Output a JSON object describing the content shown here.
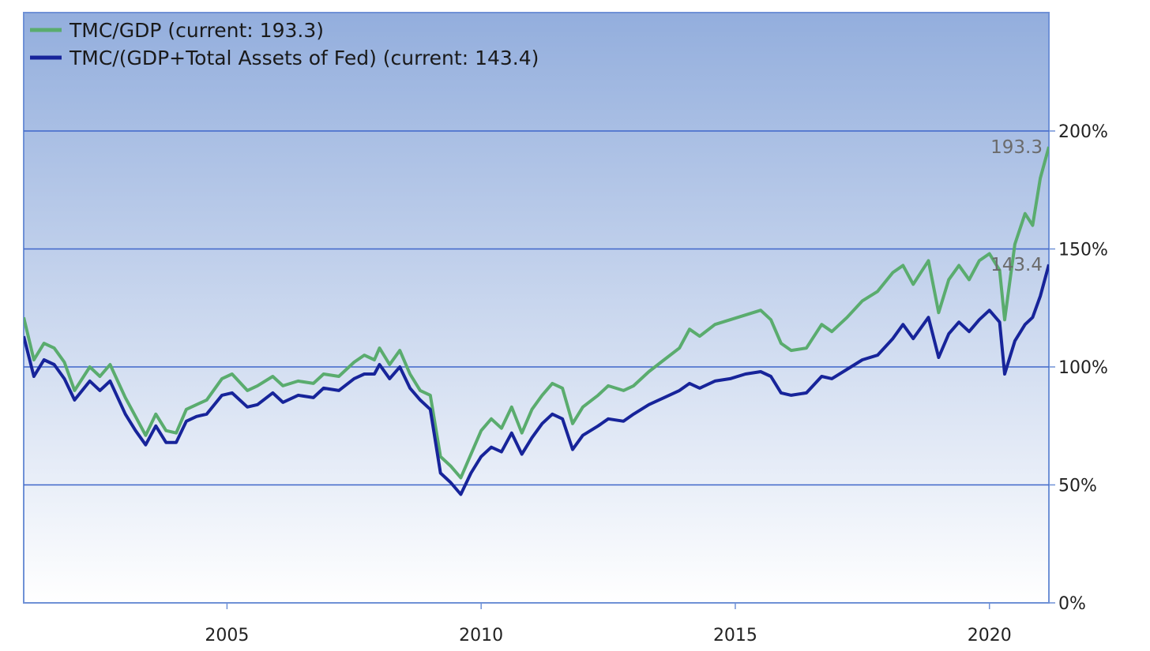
{
  "chart_data": {
    "type": "line",
    "title": "",
    "xlabel": "",
    "ylabel": "",
    "x_range": [
      2001.0,
      2021.17
    ],
    "ylim": [
      0,
      200
    ],
    "y_ticks": [
      0,
      50,
      100,
      150,
      200
    ],
    "y_tick_labels": [
      "0%",
      "50%",
      "100%",
      "150%",
      "200%"
    ],
    "x_ticks": [
      2005,
      2010,
      2015,
      2020
    ],
    "x_tick_labels": [
      "2005",
      "2010",
      "2015",
      "2020"
    ],
    "grid": "horizontal",
    "legend_position": "top-left",
    "colors": {
      "series_0": "#5aac6e",
      "series_1": "#17249a",
      "plot_bg_top": "#93aedd",
      "plot_bg_bottom": "#ffffff",
      "gridline": "#3f66c9"
    },
    "series": [
      {
        "name": "TMC/GDP (current: 193.3)",
        "end_label": "193.3",
        "points": [
          [
            2001.0,
            121
          ],
          [
            2001.2,
            103
          ],
          [
            2001.4,
            110
          ],
          [
            2001.6,
            108
          ],
          [
            2001.8,
            102
          ],
          [
            2002.0,
            90
          ],
          [
            2002.3,
            100
          ],
          [
            2002.5,
            96
          ],
          [
            2002.7,
            101
          ],
          [
            2003.0,
            87
          ],
          [
            2003.2,
            79
          ],
          [
            2003.4,
            71
          ],
          [
            2003.6,
            80
          ],
          [
            2003.8,
            73
          ],
          [
            2004.0,
            72
          ],
          [
            2004.2,
            82
          ],
          [
            2004.4,
            84
          ],
          [
            2004.6,
            86
          ],
          [
            2004.9,
            95
          ],
          [
            2005.1,
            97
          ],
          [
            2005.4,
            90
          ],
          [
            2005.6,
            92
          ],
          [
            2005.9,
            96
          ],
          [
            2006.1,
            92
          ],
          [
            2006.4,
            94
          ],
          [
            2006.7,
            93
          ],
          [
            2006.9,
            97
          ],
          [
            2007.2,
            96
          ],
          [
            2007.5,
            102
          ],
          [
            2007.7,
            105
          ],
          [
            2007.9,
            103
          ],
          [
            2008.0,
            108
          ],
          [
            2008.2,
            101
          ],
          [
            2008.4,
            107
          ],
          [
            2008.6,
            97
          ],
          [
            2008.8,
            90
          ],
          [
            2009.0,
            88
          ],
          [
            2009.2,
            62
          ],
          [
            2009.4,
            58
          ],
          [
            2009.6,
            53
          ],
          [
            2009.8,
            63
          ],
          [
            2010.0,
            73
          ],
          [
            2010.2,
            78
          ],
          [
            2010.4,
            74
          ],
          [
            2010.6,
            83
          ],
          [
            2010.8,
            72
          ],
          [
            2011.0,
            82
          ],
          [
            2011.2,
            88
          ],
          [
            2011.4,
            93
          ],
          [
            2011.6,
            91
          ],
          [
            2011.8,
            76
          ],
          [
            2012.0,
            83
          ],
          [
            2012.3,
            88
          ],
          [
            2012.5,
            92
          ],
          [
            2012.8,
            90
          ],
          [
            2013.0,
            92
          ],
          [
            2013.3,
            98
          ],
          [
            2013.6,
            103
          ],
          [
            2013.9,
            108
          ],
          [
            2014.1,
            116
          ],
          [
            2014.3,
            113
          ],
          [
            2014.6,
            118
          ],
          [
            2014.9,
            120
          ],
          [
            2015.2,
            122
          ],
          [
            2015.5,
            124
          ],
          [
            2015.7,
            120
          ],
          [
            2015.9,
            110
          ],
          [
            2016.1,
            107
          ],
          [
            2016.4,
            108
          ],
          [
            2016.7,
            118
          ],
          [
            2016.9,
            115
          ],
          [
            2017.2,
            121
          ],
          [
            2017.5,
            128
          ],
          [
            2017.8,
            132
          ],
          [
            2018.1,
            140
          ],
          [
            2018.3,
            143
          ],
          [
            2018.5,
            135
          ],
          [
            2018.8,
            145
          ],
          [
            2019.0,
            123
          ],
          [
            2019.2,
            137
          ],
          [
            2019.4,
            143
          ],
          [
            2019.6,
            137
          ],
          [
            2019.8,
            145
          ],
          [
            2020.0,
            148
          ],
          [
            2020.2,
            141
          ],
          [
            2020.3,
            120
          ],
          [
            2020.5,
            152
          ],
          [
            2020.7,
            165
          ],
          [
            2020.85,
            160
          ],
          [
            2021.0,
            180
          ],
          [
            2021.17,
            193.3
          ]
        ]
      },
      {
        "name": "TMC/(GDP+Total Assets of Fed) (current: 143.4)",
        "end_label": "143.4",
        "points": [
          [
            2001.0,
            113
          ],
          [
            2001.2,
            96
          ],
          [
            2001.4,
            103
          ],
          [
            2001.6,
            101
          ],
          [
            2001.8,
            95
          ],
          [
            2002.0,
            86
          ],
          [
            2002.3,
            94
          ],
          [
            2002.5,
            90
          ],
          [
            2002.7,
            94
          ],
          [
            2003.0,
            80
          ],
          [
            2003.2,
            73
          ],
          [
            2003.4,
            67
          ],
          [
            2003.6,
            75
          ],
          [
            2003.8,
            68
          ],
          [
            2004.0,
            68
          ],
          [
            2004.2,
            77
          ],
          [
            2004.4,
            79
          ],
          [
            2004.6,
            80
          ],
          [
            2004.9,
            88
          ],
          [
            2005.1,
            89
          ],
          [
            2005.4,
            83
          ],
          [
            2005.6,
            84
          ],
          [
            2005.9,
            89
          ],
          [
            2006.1,
            85
          ],
          [
            2006.4,
            88
          ],
          [
            2006.7,
            87
          ],
          [
            2006.9,
            91
          ],
          [
            2007.2,
            90
          ],
          [
            2007.5,
            95
          ],
          [
            2007.7,
            97
          ],
          [
            2007.9,
            97
          ],
          [
            2008.0,
            101
          ],
          [
            2008.2,
            95
          ],
          [
            2008.4,
            100
          ],
          [
            2008.6,
            91
          ],
          [
            2008.8,
            86
          ],
          [
            2009.0,
            82
          ],
          [
            2009.2,
            55
          ],
          [
            2009.4,
            51
          ],
          [
            2009.6,
            46
          ],
          [
            2009.8,
            55
          ],
          [
            2010.0,
            62
          ],
          [
            2010.2,
            66
          ],
          [
            2010.4,
            64
          ],
          [
            2010.6,
            72
          ],
          [
            2010.8,
            63
          ],
          [
            2011.0,
            70
          ],
          [
            2011.2,
            76
          ],
          [
            2011.4,
            80
          ],
          [
            2011.6,
            78
          ],
          [
            2011.8,
            65
          ],
          [
            2012.0,
            71
          ],
          [
            2012.3,
            75
          ],
          [
            2012.5,
            78
          ],
          [
            2012.8,
            77
          ],
          [
            2013.0,
            80
          ],
          [
            2013.3,
            84
          ],
          [
            2013.6,
            87
          ],
          [
            2013.9,
            90
          ],
          [
            2014.1,
            93
          ],
          [
            2014.3,
            91
          ],
          [
            2014.6,
            94
          ],
          [
            2014.9,
            95
          ],
          [
            2015.2,
            97
          ],
          [
            2015.5,
            98
          ],
          [
            2015.7,
            96
          ],
          [
            2015.9,
            89
          ],
          [
            2016.1,
            88
          ],
          [
            2016.4,
            89
          ],
          [
            2016.7,
            96
          ],
          [
            2016.9,
            95
          ],
          [
            2017.2,
            99
          ],
          [
            2017.5,
            103
          ],
          [
            2017.8,
            105
          ],
          [
            2018.1,
            112
          ],
          [
            2018.3,
            118
          ],
          [
            2018.5,
            112
          ],
          [
            2018.8,
            121
          ],
          [
            2019.0,
            104
          ],
          [
            2019.2,
            114
          ],
          [
            2019.4,
            119
          ],
          [
            2019.6,
            115
          ],
          [
            2019.8,
            120
          ],
          [
            2020.0,
            124
          ],
          [
            2020.2,
            119
          ],
          [
            2020.3,
            97
          ],
          [
            2020.5,
            111
          ],
          [
            2020.7,
            118
          ],
          [
            2020.85,
            121
          ],
          [
            2021.0,
            130
          ],
          [
            2021.17,
            143.4
          ]
        ]
      }
    ]
  }
}
